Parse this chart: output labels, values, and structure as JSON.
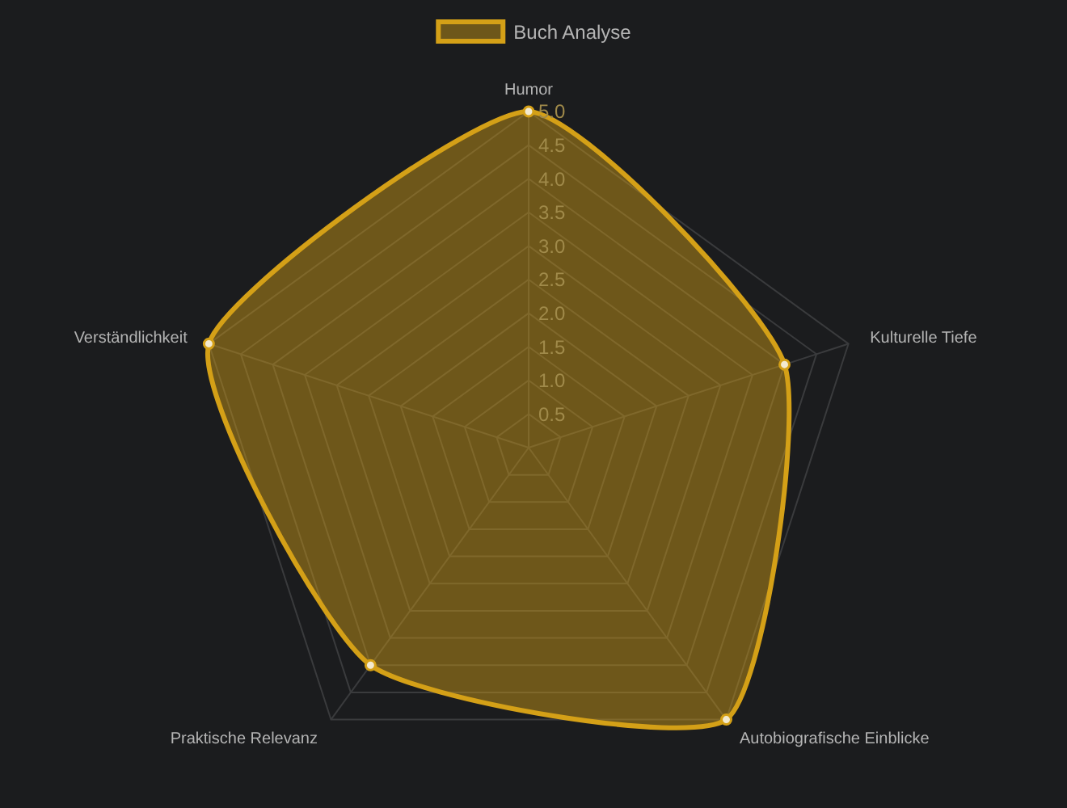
{
  "chart_data": {
    "type": "radar",
    "categories": [
      "Humor",
      "Kulturelle Tiefe",
      "Autobiografische Einblicke",
      "Praktische Relevanz",
      "Verständlichkeit"
    ],
    "series": [
      {
        "name": "Buch Analyse",
        "color": "#d4a017",
        "values": [
          5,
          4,
          5,
          4,
          5
        ]
      }
    ],
    "ylim": [
      0,
      5
    ],
    "yticks": [
      {
        "value": 0.5,
        "label": "0.5"
      },
      {
        "value": 1,
        "label": "1.0"
      },
      {
        "value": 1.5,
        "label": "1.5"
      },
      {
        "value": 2,
        "label": "2.0"
      },
      {
        "value": 2.5,
        "label": "2.5"
      },
      {
        "value": 3,
        "label": "3.0"
      },
      {
        "value": 3.5,
        "label": "3.5"
      },
      {
        "value": 4,
        "label": "4.0"
      },
      {
        "value": 4.5,
        "label": "4.5"
      },
      {
        "value": 5,
        "label": "5.0"
      }
    ],
    "grid": true,
    "legend": "top",
    "marker": "circle"
  }
}
